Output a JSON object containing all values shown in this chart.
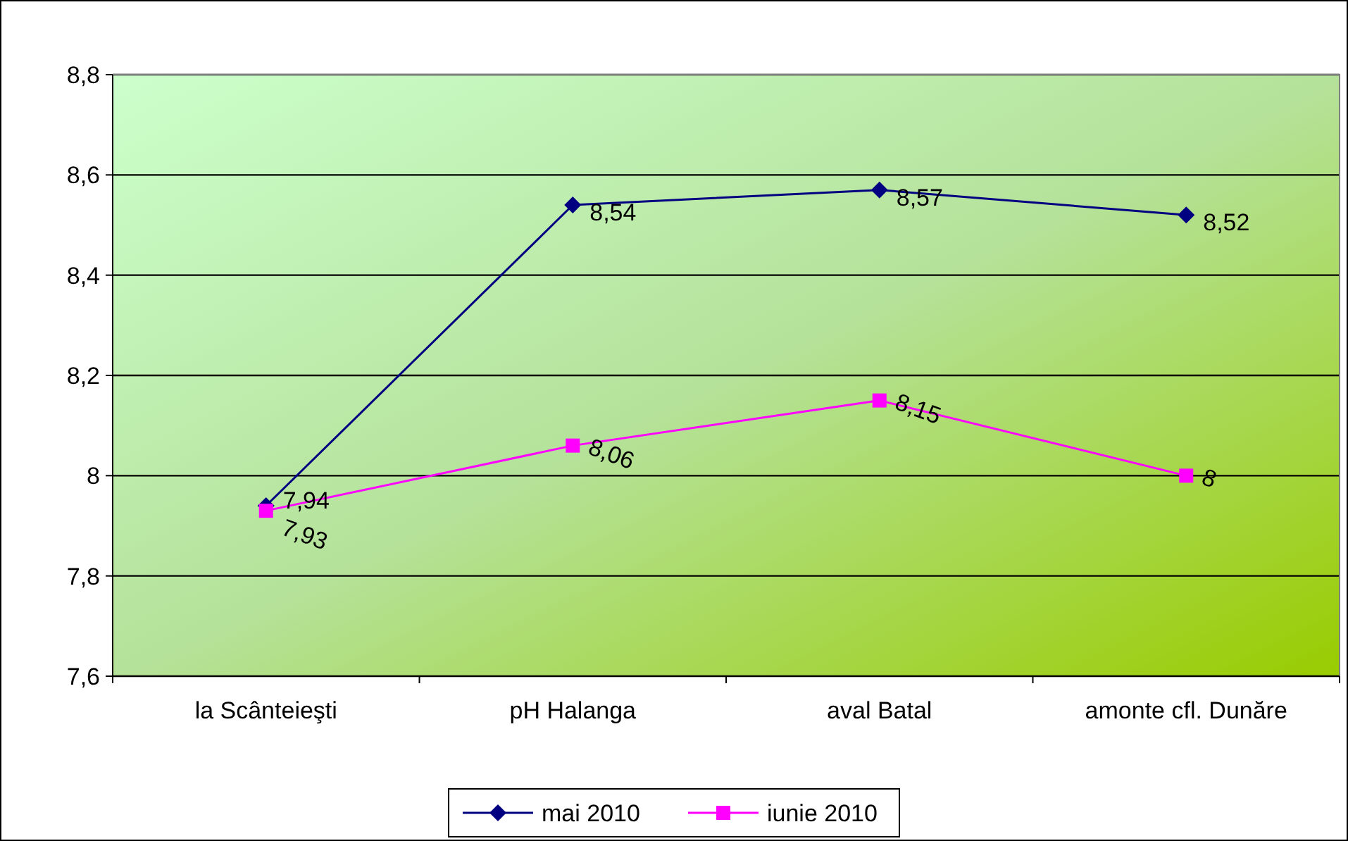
{
  "chart_data": {
    "type": "line",
    "categories": [
      "la Scânteieşti",
      "pH Halanga",
      "aval Batal",
      "amonte cfl. Dunăre"
    ],
    "series": [
      {
        "name": "mai 2010",
        "color": "#000080",
        "marker": "diamond",
        "values": [
          7.94,
          8.54,
          8.57,
          8.52
        ],
        "value_labels": [
          "7,94",
          "8,54",
          "8,57",
          "8,52"
        ]
      },
      {
        "name": "iunie 2010",
        "color": "#ff00ff",
        "marker": "square",
        "values": [
          7.93,
          8.06,
          8.15,
          8
        ],
        "value_labels": [
          "7,93",
          "8,06",
          "8,15",
          "8"
        ]
      }
    ],
    "ylim": [
      7.6,
      8.8
    ],
    "yticks": [
      {
        "value": 7.6,
        "label": "7,6"
      },
      {
        "value": 7.8,
        "label": "7,8"
      },
      {
        "value": 8,
        "label": "8"
      },
      {
        "value": 8.2,
        "label": "8,2"
      },
      {
        "value": 8.4,
        "label": "8,4"
      },
      {
        "value": 8.6,
        "label": "8,6"
      },
      {
        "value": 8.8,
        "label": "8,8"
      }
    ],
    "grid": "y",
    "legend": "bottom"
  }
}
